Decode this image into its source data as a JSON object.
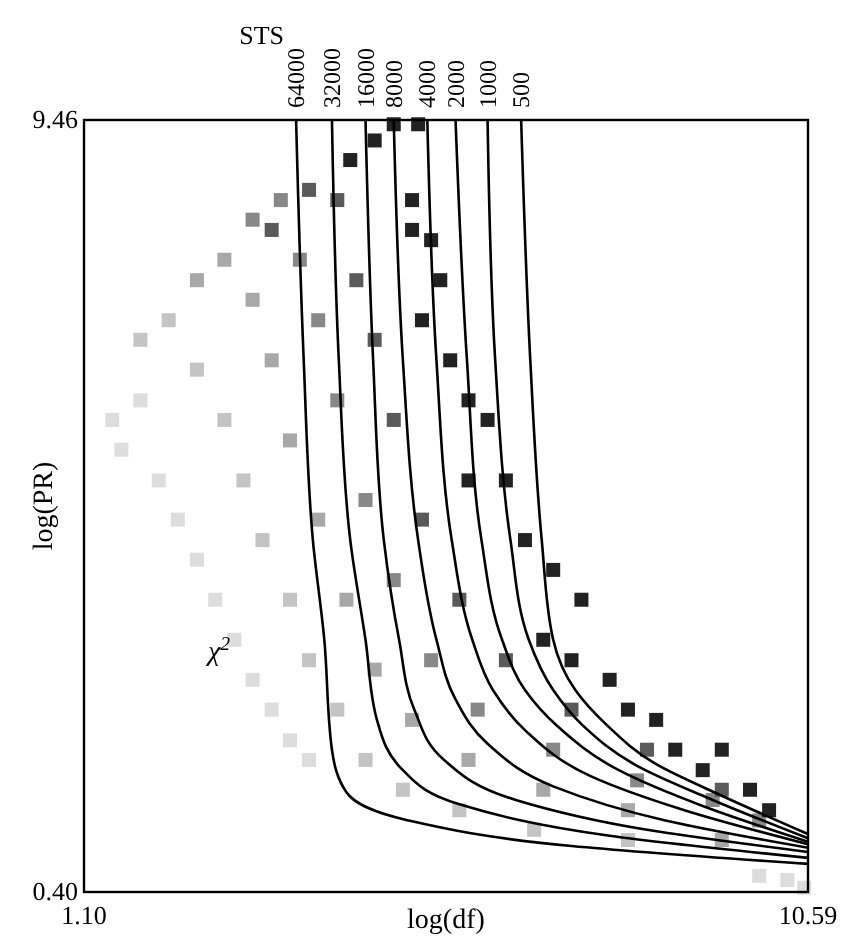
{
  "chart_data": {
    "type": "scatter",
    "xlabel": "log(df)",
    "ylabel": "log(PR)",
    "legend_title": "STS",
    "xlim": [
      1.1,
      10.59
    ],
    "ylim": [
      0.4,
      9.46
    ],
    "xticks": [
      {
        "value": 1.1,
        "label": "1.10"
      },
      {
        "value": 10.59,
        "label": "10.59"
      }
    ],
    "yticks": [
      {
        "value": 0.4,
        "label": "0.40"
      },
      {
        "value": 9.46,
        "label": "9.46"
      }
    ],
    "marker": "square",
    "legend": false,
    "annotations": [
      "χ$^{2}$"
    ],
    "series": [
      {
        "color": "#dddddd",
        "x": [
          1.47,
          1.59,
          1.84,
          2.08,
          2.33,
          2.58,
          2.82,
          3.07,
          3.31,
          3.56,
          3.8,
          4.05,
          9.95,
          10.32,
          10.54
        ],
        "values": [
          5.94,
          5.59,
          6.17,
          5.23,
          4.77,
          4.3,
          3.83,
          3.36,
          2.89,
          2.54,
          2.18,
          1.95,
          0.59,
          0.54,
          0.45
        ]
      },
      {
        "color": "#c4c4c4",
        "x": [
          1.84,
          2.21,
          2.58,
          2.94,
          3.19,
          3.44,
          3.8,
          4.05,
          4.42,
          4.79,
          5.28,
          6.02,
          7.0,
          8.23
        ],
        "values": [
          6.88,
          7.11,
          6.53,
          5.94,
          5.23,
          4.53,
          3.83,
          3.12,
          2.54,
          1.95,
          1.6,
          1.36,
          1.13,
          1.01
        ]
      },
      {
        "color": "#a8a8a8",
        "x": [
          2.58,
          2.94,
          3.31,
          3.56,
          3.8,
          4.17,
          4.54,
          4.91,
          5.4,
          6.14,
          7.12,
          8.23,
          9.46
        ],
        "values": [
          7.58,
          7.82,
          7.35,
          6.64,
          5.7,
          4.77,
          3.83,
          3.01,
          2.42,
          1.95,
          1.6,
          1.36,
          1.01
        ]
      },
      {
        "color": "#888888",
        "x": [
          3.31,
          3.68,
          3.93,
          4.17,
          4.42,
          4.79,
          5.16,
          5.65,
          6.26,
          7.25,
          8.35,
          9.34,
          9.95
        ],
        "values": [
          8.29,
          8.52,
          7.82,
          7.11,
          6.17,
          5.0,
          4.06,
          3.12,
          2.54,
          2.07,
          1.71,
          1.48,
          1.24
        ]
      },
      {
        "color": "#5a5a5a",
        "x": [
          3.56,
          4.05,
          4.42,
          4.67,
          4.91,
          5.16,
          5.53,
          6.02,
          6.63,
          7.49,
          8.48,
          9.46
        ],
        "values": [
          8.17,
          8.64,
          8.52,
          7.58,
          6.88,
          5.94,
          4.77,
          3.83,
          3.12,
          2.54,
          2.07,
          1.6
        ]
      },
      {
        "color": "#222222",
        "x": [
          4.59,
          4.91,
          5.16,
          5.48,
          5.4,
          5.4,
          5.65,
          5.77,
          5.53,
          5.9,
          6.14,
          6.39,
          6.14,
          6.63,
          6.88,
          7.25,
          7.62,
          7.12,
          7.49,
          7.99,
          8.23,
          8.6,
          8.85,
          9.21,
          9.46,
          9.83,
          10.08
        ],
        "values": [
          8.99,
          9.22,
          9.41,
          9.41,
          8.52,
          8.17,
          8.05,
          7.58,
          7.11,
          6.64,
          6.17,
          5.94,
          5.23,
          5.23,
          4.53,
          4.18,
          3.83,
          3.36,
          3.12,
          2.89,
          2.54,
          2.42,
          2.07,
          1.83,
          2.07,
          1.6,
          1.36
        ]
      },
      {
        "type": "line",
        "marker": "none",
        "name": "64000",
        "color": "#000000",
        "x": [
          3.88,
          3.98,
          4.1,
          4.25,
          4.35,
          4.54,
          5.35,
          7.49,
          10.59
        ],
        "values": [
          9.46,
          6.64,
          4.53,
          3.36,
          2.07,
          1.57,
          1.24,
          0.94,
          0.73
        ]
      },
      {
        "type": "line",
        "marker": "none",
        "name": "32000",
        "color": "#000000",
        "x": [
          4.35,
          4.44,
          4.59,
          4.79,
          4.94,
          5.28,
          6.02,
          7.99,
          10.59
        ],
        "values": [
          9.46,
          6.64,
          4.53,
          3.36,
          2.42,
          1.83,
          1.43,
          1.06,
          0.8
        ]
      },
      {
        "type": "line",
        "marker": "none",
        "name": "16000",
        "color": "#000000",
        "x": [
          4.79,
          4.89,
          5.03,
          5.23,
          5.43,
          5.82,
          6.76,
          8.48,
          10.59
        ],
        "values": [
          9.46,
          6.64,
          4.53,
          3.36,
          2.54,
          1.95,
          1.48,
          1.13,
          0.87
        ]
      },
      {
        "type": "line",
        "marker": "none",
        "name": "8000",
        "color": "#000000",
        "x": [
          5.16,
          5.28,
          5.48,
          5.72,
          5.97,
          6.39,
          7.25,
          8.72,
          10.59
        ],
        "values": [
          9.46,
          6.64,
          4.53,
          3.36,
          2.66,
          2.14,
          1.64,
          1.24,
          0.92
        ]
      },
      {
        "type": "line",
        "marker": "none",
        "name": "4000",
        "color": "#000000",
        "x": [
          5.6,
          5.72,
          5.92,
          6.19,
          6.46,
          6.88,
          7.74,
          8.97,
          10.59
        ],
        "values": [
          9.46,
          6.64,
          4.53,
          3.36,
          2.77,
          2.3,
          1.76,
          1.36,
          0.96
        ]
      },
      {
        "type": "line",
        "marker": "none",
        "name": "2000",
        "color": "#000000",
        "x": [
          5.97,
          6.12,
          6.31,
          6.58,
          6.88,
          7.3,
          8.11,
          9.21,
          10.59
        ],
        "values": [
          9.46,
          6.64,
          4.53,
          3.36,
          2.77,
          2.35,
          1.83,
          1.41,
          0.99
        ]
      },
      {
        "type": "line",
        "marker": "none",
        "name": "1000",
        "color": "#000000",
        "x": [
          6.39,
          6.49,
          6.69,
          6.93,
          7.25,
          7.62,
          8.35,
          9.34,
          10.59
        ],
        "values": [
          9.46,
          6.64,
          4.53,
          3.36,
          2.77,
          2.37,
          1.88,
          1.48,
          1.03
        ]
      },
      {
        "type": "line",
        "marker": "none",
        "name": "500",
        "color": "#000000",
        "x": [
          6.83,
          6.95,
          7.1,
          7.25,
          7.54,
          7.94,
          8.6,
          9.46,
          10.59
        ],
        "values": [
          9.46,
          6.64,
          4.53,
          3.36,
          2.77,
          2.37,
          1.9,
          1.53,
          1.08
        ]
      }
    ]
  }
}
